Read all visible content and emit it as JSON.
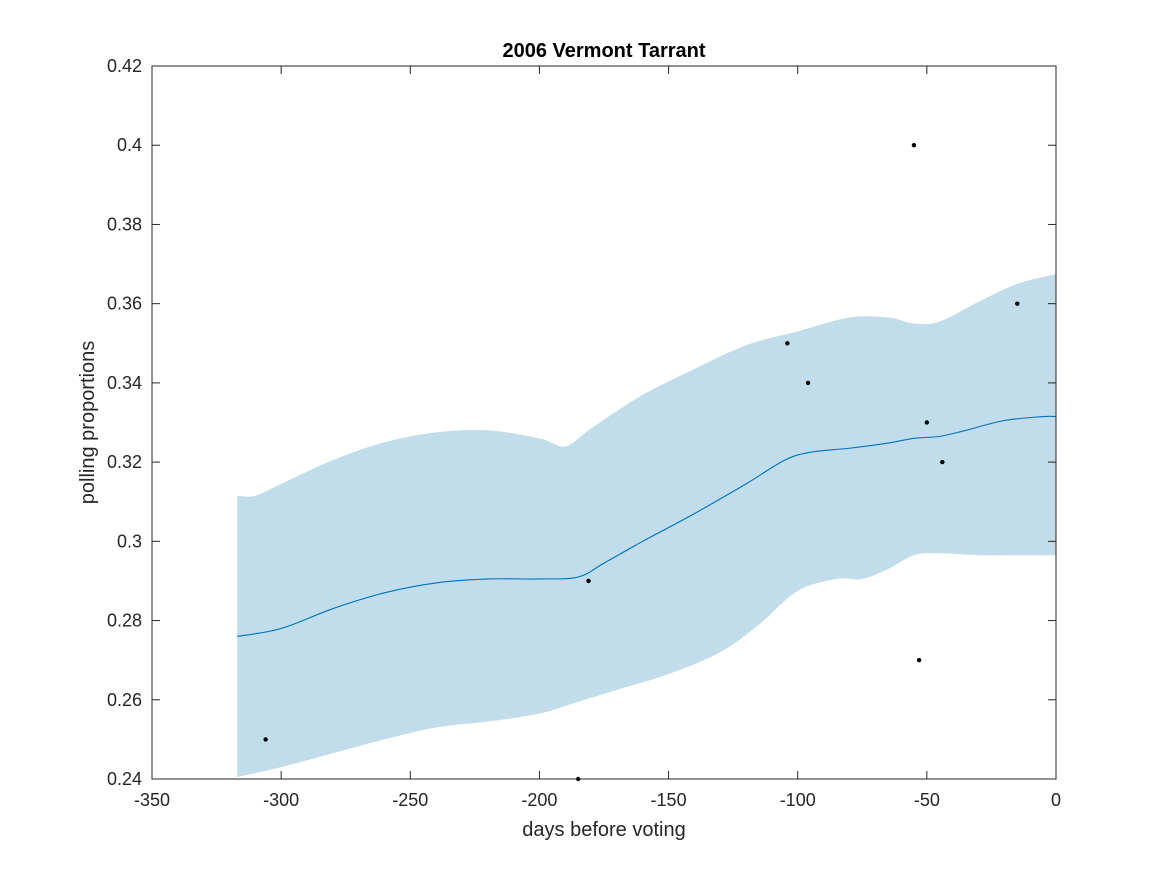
{
  "chart_data": {
    "type": "line",
    "title": "2006 Vermont Tarrant",
    "xlabel": "days before voting",
    "ylabel": "polling proportions",
    "xlim": [
      -350,
      0
    ],
    "ylim": [
      0.24,
      0.42
    ],
    "xticks": [
      -350,
      -300,
      -250,
      -200,
      -150,
      -100,
      -50,
      0
    ],
    "xtick_labels": [
      "-350",
      "-300",
      "-250",
      "-200",
      "-150",
      "-100",
      "-50",
      "0"
    ],
    "yticks": [
      0.24,
      0.26,
      0.28,
      0.3,
      0.32,
      0.34,
      0.36,
      0.38,
      0.4,
      0.42
    ],
    "ytick_labels": [
      "0.24",
      "0.26",
      "0.28",
      "0.3",
      "0.32",
      "0.34",
      "0.36",
      "0.38",
      "0.4",
      "0.42"
    ],
    "grid": false,
    "colors": {
      "trend_line": "#0072bd",
      "band_fill": "#c1dcea",
      "points": "#000000",
      "axes": "#262626"
    },
    "trend": {
      "x": [
        -317,
        -300,
        -280,
        -260,
        -240,
        -220,
        -200,
        -185,
        -175,
        -160,
        -140,
        -120,
        -105,
        -95,
        -80,
        -65,
        -55,
        -45,
        -35,
        -20,
        -5,
        0
      ],
      "y": [
        0.276,
        0.278,
        0.283,
        0.287,
        0.2895,
        0.2905,
        0.2905,
        0.291,
        0.2945,
        0.3,
        0.307,
        0.3145,
        0.3205,
        0.3225,
        0.3235,
        0.3248,
        0.326,
        0.3265,
        0.328,
        0.3305,
        0.3315,
        0.3315
      ]
    },
    "band_upper": {
      "x": [
        -317,
        -310,
        -300,
        -280,
        -260,
        -240,
        -220,
        -200,
        -190,
        -180,
        -160,
        -140,
        -120,
        -100,
        -80,
        -65,
        -55,
        -45,
        -30,
        -15,
        0
      ],
      "y": [
        0.3115,
        0.3115,
        0.3145,
        0.3205,
        0.325,
        0.3275,
        0.328,
        0.326,
        0.324,
        0.3285,
        0.337,
        0.3435,
        0.3495,
        0.353,
        0.3565,
        0.3565,
        0.355,
        0.3555,
        0.3605,
        0.365,
        0.3675
      ]
    },
    "band_lower": {
      "x": [
        -317,
        -300,
        -280,
        -260,
        -240,
        -220,
        -200,
        -185,
        -170,
        -150,
        -130,
        -115,
        -100,
        -85,
        -75,
        -65,
        -55,
        -45,
        -30,
        -15,
        0
      ],
      "y": [
        0.2405,
        0.243,
        0.2465,
        0.25,
        0.253,
        0.2545,
        0.2565,
        0.2595,
        0.2625,
        0.2665,
        0.272,
        0.279,
        0.2875,
        0.2905,
        0.2905,
        0.293,
        0.2965,
        0.297,
        0.2965,
        0.2965,
        0.2965
      ]
    },
    "points": {
      "x": [
        -306,
        -185,
        -181,
        -104,
        -96,
        -55,
        -53,
        -50,
        -44,
        -15
      ],
      "y": [
        0.25,
        0.24,
        0.29,
        0.35,
        0.34,
        0.4,
        0.27,
        0.33,
        0.32,
        0.36
      ]
    }
  }
}
